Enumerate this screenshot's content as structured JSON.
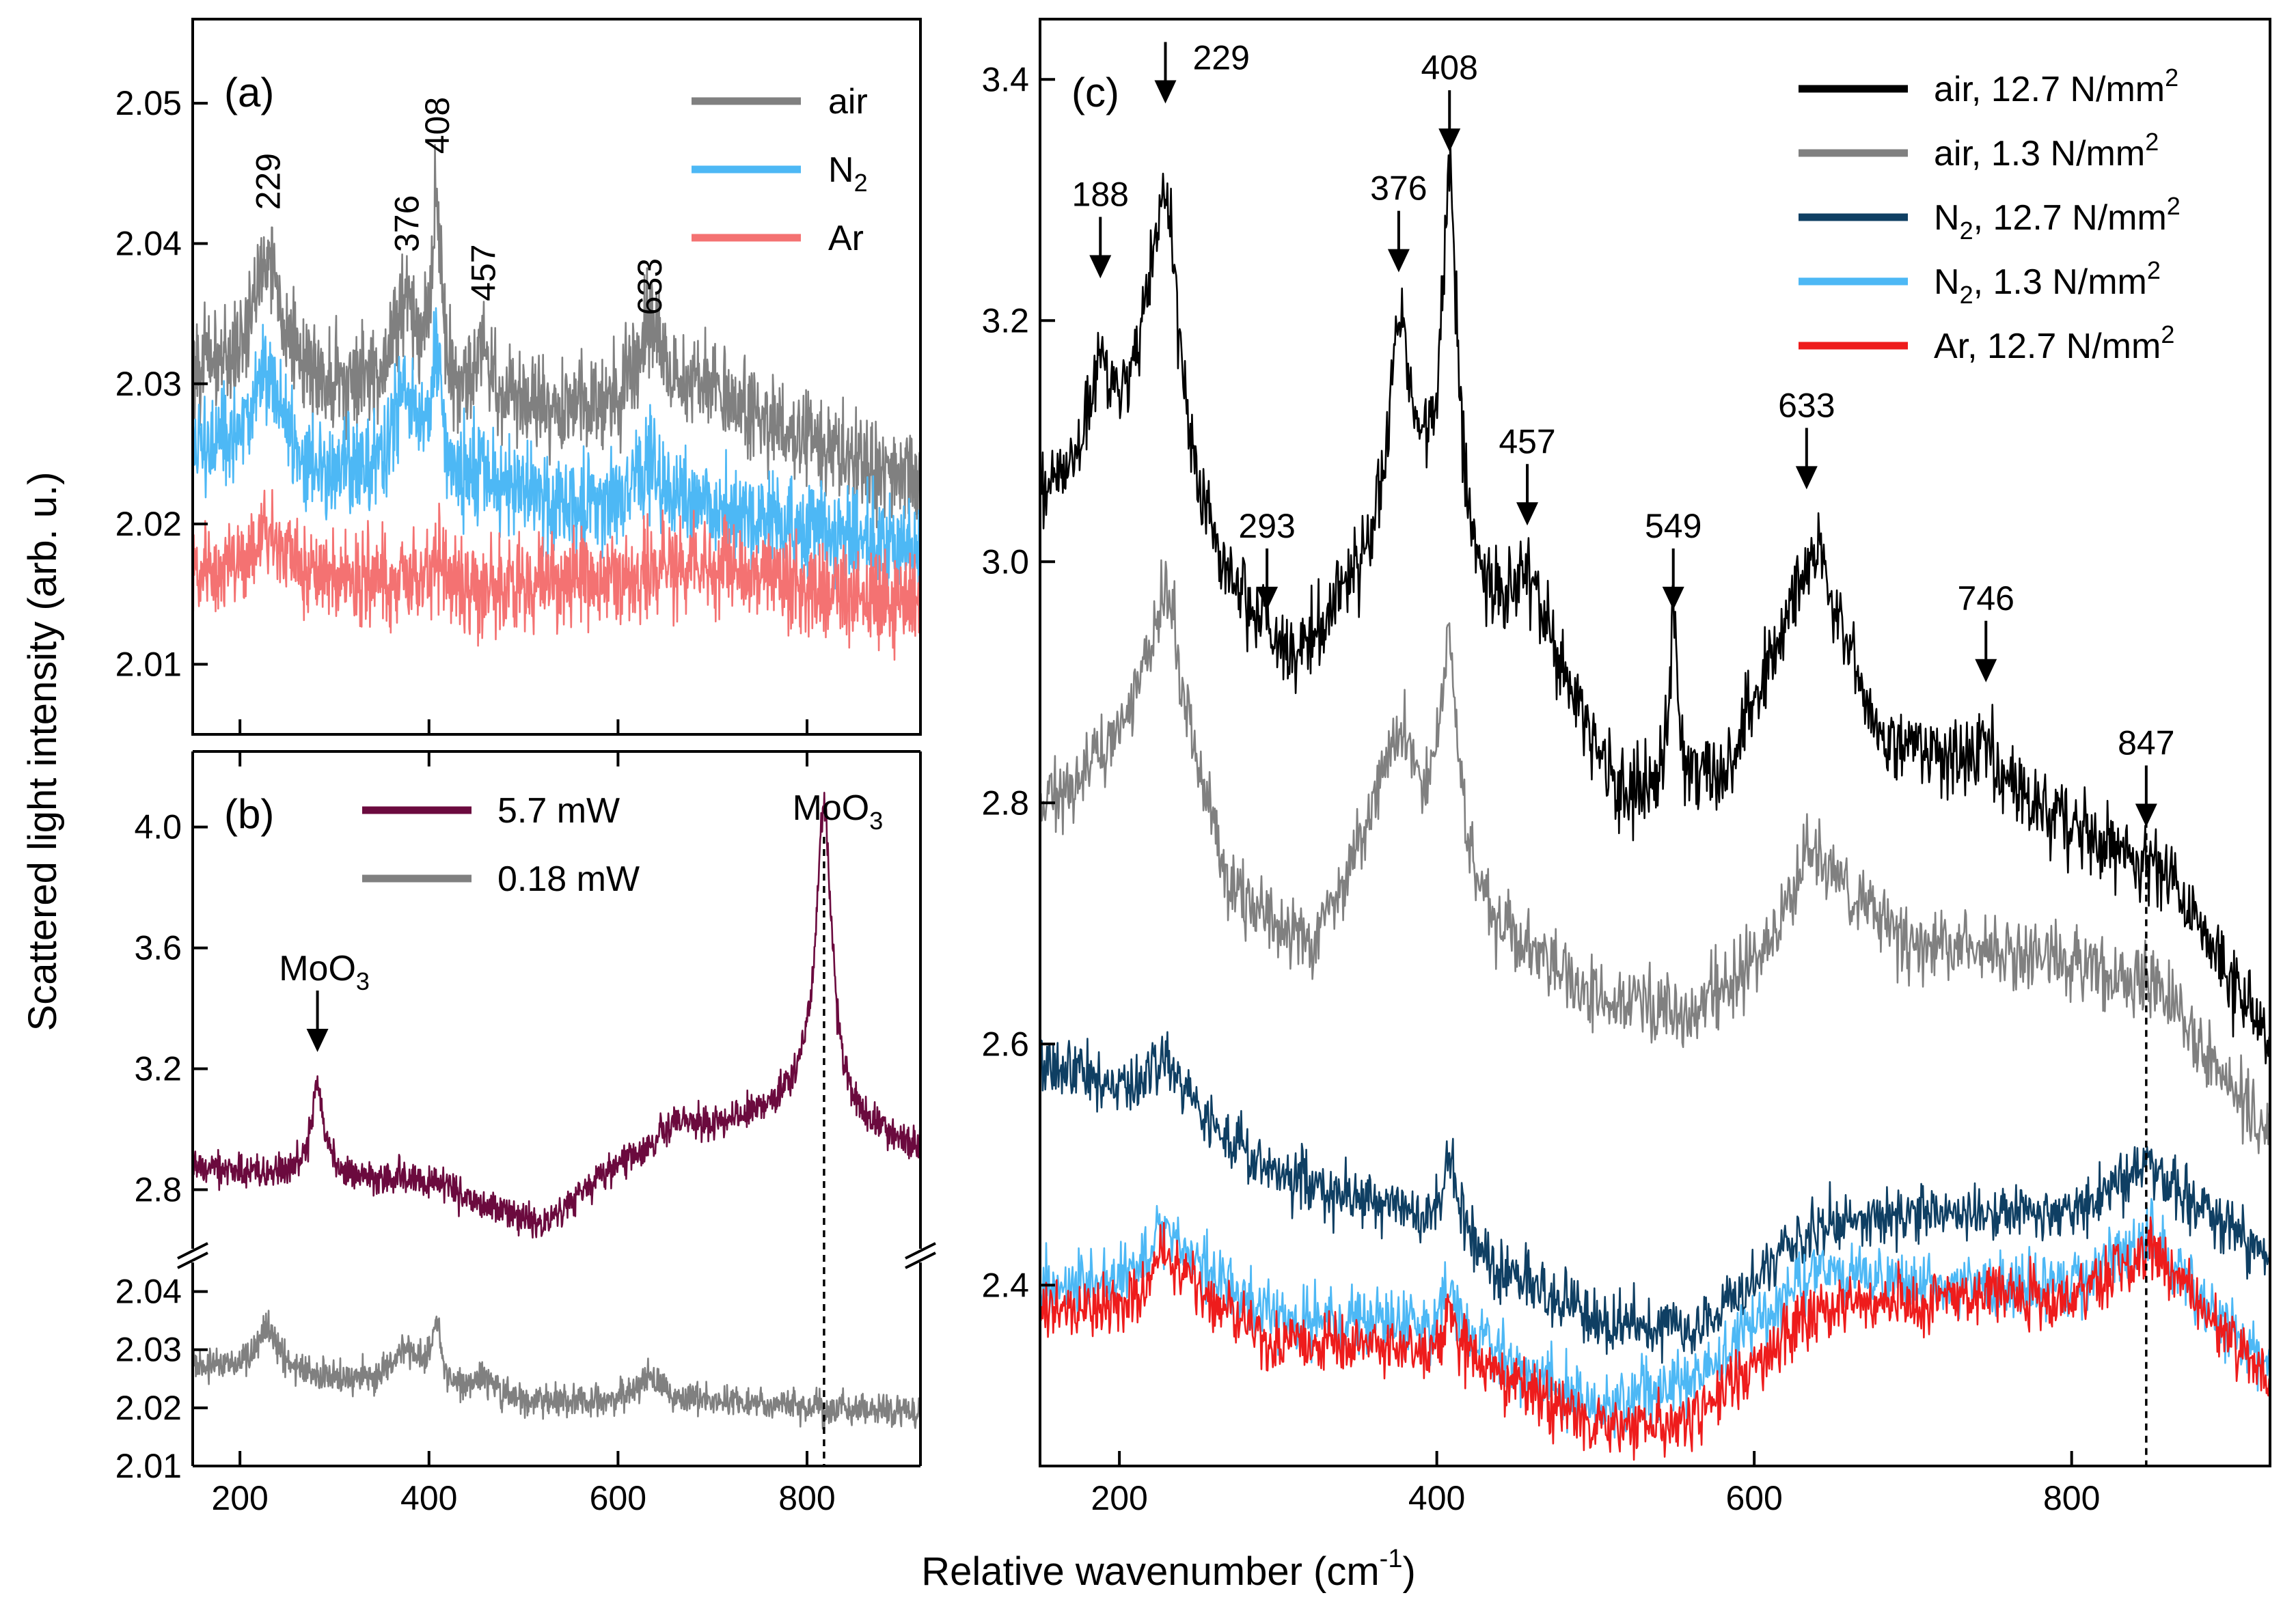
{
  "axes": {
    "ylabel": "Scattered light intensity (arb. u.)",
    "xlabel": "Relative wavenumber (cm",
    "xlabel_sup": "-1",
    "xlabel_end": ")"
  },
  "chart_data": [
    {
      "panel": "(a)",
      "type": "line",
      "xlim": [
        150,
        920
      ],
      "ylim": [
        2.005,
        2.056
      ],
      "xticks": [
        200,
        400,
        600,
        800
      ],
      "yticks": [
        2.01,
        2.02,
        2.03,
        2.04,
        2.05
      ],
      "ytick_labels": [
        "2.01",
        "2.02",
        "2.03",
        "2.04",
        "2.05"
      ],
      "legend": {
        "position": "top-right",
        "entries": [
          {
            "label": "air",
            "sub": "",
            "color": "#808080"
          },
          {
            "label": "N",
            "sub": "2",
            "color": "#4db8f5"
          },
          {
            "label": "Ar",
            "sub": "",
            "color": "#f47272"
          }
        ]
      },
      "peak_labels": [
        {
          "x": 229,
          "text": "229"
        },
        {
          "x": 376,
          "text": "376"
        },
        {
          "x": 408,
          "text": "408"
        },
        {
          "x": 457,
          "text": "457"
        },
        {
          "x": 633,
          "text": "633"
        }
      ],
      "series": [
        {
          "name": "air",
          "color": "#808080",
          "baseline": [
            [
              150,
              2.031
            ],
            [
              400,
              2.028
            ],
            [
              700,
              2.028
            ],
            [
              920,
              2.023
            ]
          ],
          "noise": 0.0032,
          "peaks": [
            [
              229,
              0.009,
              18
            ],
            [
              376,
              0.007,
              20
            ],
            [
              408,
              0.013,
              6
            ],
            [
              457,
              0.004,
              12
            ],
            [
              633,
              0.006,
              16
            ],
            [
              690,
              0.002,
              30
            ]
          ]
        },
        {
          "name": "N2",
          "color": "#4db8f5",
          "baseline": [
            [
              150,
              2.025
            ],
            [
              400,
              2.022
            ],
            [
              700,
              2.021
            ],
            [
              920,
              2.018
            ]
          ],
          "noise": 0.0032,
          "peaks": [
            [
              229,
              0.007,
              18
            ],
            [
              376,
              0.006,
              20
            ],
            [
              408,
              0.009,
              6
            ],
            [
              457,
              0.002,
              12
            ],
            [
              633,
              0.003,
              16
            ]
          ]
        },
        {
          "name": "Ar",
          "color": "#f47272",
          "baseline": [
            [
              150,
              2.0165
            ],
            [
              500,
              2.0155
            ],
            [
              700,
              2.017
            ],
            [
              920,
              2.014
            ]
          ],
          "noise": 0.003,
          "peaks": [
            [
              229,
              0.003,
              18
            ],
            [
              408,
              0.002,
              6
            ]
          ]
        }
      ]
    },
    {
      "panel": "(b)",
      "type": "line",
      "xlim": [
        150,
        920
      ],
      "segments": [
        {
          "ylim": [
            2.6,
            4.25
          ],
          "yticks": [
            2.8,
            3.2,
            3.6,
            4.0
          ],
          "ytick_labels": [
            "2.8",
            "3.2",
            "3.6",
            "4.0"
          ]
        },
        {
          "ylim": [
            2.01,
            2.045
          ],
          "yticks": [
            2.01,
            2.02,
            2.03,
            2.04
          ],
          "ytick_labels": [
            "2.01",
            "2.02",
            "2.03",
            "2.04"
          ]
        }
      ],
      "xticks": [
        200,
        400,
        600,
        800
      ],
      "xtick_labels": [
        "200",
        "400",
        "600",
        "800"
      ],
      "legend": {
        "position": "top-center",
        "entries": [
          {
            "label": "5.7 mW",
            "color": "#6b0a3e"
          },
          {
            "label": "0.18 mW",
            "color": "#808080"
          }
        ]
      },
      "annotations": [
        {
          "x": 282,
          "text": "MoO",
          "sub": "3"
        },
        {
          "x": 818,
          "text": "MoO",
          "sub": "3"
        }
      ],
      "dashed_line_x": 818,
      "series": [
        {
          "name": "5.7 mW",
          "color": "#6b0a3e",
          "segment": 0,
          "baseline": [
            [
              150,
              2.87
            ],
            [
              300,
              2.85
            ],
            [
              450,
              2.76
            ],
            [
              520,
              2.68
            ],
            [
              600,
              2.86
            ],
            [
              700,
              2.98
            ],
            [
              800,
              3.12
            ],
            [
              850,
              3.02
            ],
            [
              920,
              2.93
            ]
          ],
          "noise": 0.05,
          "peaks": [
            [
              282,
              0.3,
              7
            ],
            [
              372,
              0.04,
              15
            ],
            [
              408,
              0.05,
              10
            ],
            [
              818,
              0.98,
              10
            ],
            [
              660,
              0.09,
              30
            ]
          ]
        },
        {
          "name": "0.18 mW",
          "color": "#808080",
          "segment": 1,
          "baseline": [
            [
              150,
              2.027
            ],
            [
              300,
              2.025
            ],
            [
              500,
              2.021
            ],
            [
              700,
              2.021
            ],
            [
              920,
              2.019
            ]
          ],
          "noise": 0.0025,
          "peaks": [
            [
              229,
              0.008,
              14
            ],
            [
              376,
              0.006,
              18
            ],
            [
              408,
              0.011,
              6
            ],
            [
              457,
              0.003,
              12
            ],
            [
              633,
              0.004,
              18
            ]
          ]
        }
      ]
    },
    {
      "panel": "(c)",
      "type": "line",
      "xlim": [
        150,
        925
      ],
      "ylim": [
        2.25,
        3.45
      ],
      "xticks": [
        200,
        400,
        600,
        800
      ],
      "xtick_labels": [
        "200",
        "400",
        "600",
        "800"
      ],
      "yticks": [
        2.4,
        2.6,
        2.8,
        3.0,
        3.2,
        3.4
      ],
      "ytick_labels": [
        "2.4",
        "2.6",
        "2.8",
        "3.0",
        "3.2",
        "3.4"
      ],
      "legend": {
        "position": "top-right",
        "entries": [
          {
            "label": "air, 12.7 N/mm",
            "sup": "2",
            "pre": "",
            "sub": "",
            "color": "#000000"
          },
          {
            "label": "air, 1.3 N/mm",
            "sup": "2",
            "pre": "",
            "sub": "",
            "color": "#808080"
          },
          {
            "label": ", 12.7 N/mm",
            "sup": "2",
            "pre": "N",
            "sub": "2",
            "color": "#0f3f63"
          },
          {
            "label": ", 1.3 N/mm",
            "sup": "2",
            "pre": "N",
            "sub": "2",
            "color": "#4db8f5"
          },
          {
            "label": "Ar, 12.7 N/mm",
            "sup": "2",
            "pre": "",
            "sub": "",
            "color": "#ee1c1c"
          }
        ]
      },
      "peak_labels": [
        {
          "x": 188,
          "y": 3.235,
          "text": "188"
        },
        {
          "x": 229,
          "y": 3.38,
          "text": "229"
        },
        {
          "x": 293,
          "y": 2.96,
          "text": "293"
        },
        {
          "x": 376,
          "y": 3.24,
          "text": "376"
        },
        {
          "x": 408,
          "y": 3.34,
          "text": "408"
        },
        {
          "x": 457,
          "y": 3.03,
          "text": "457"
        },
        {
          "x": 549,
          "y": 2.96,
          "text": "549"
        },
        {
          "x": 633,
          "y": 3.06,
          "text": "633"
        },
        {
          "x": 746,
          "y": 2.9,
          "text": "746"
        },
        {
          "x": 847,
          "y": 2.78,
          "text": "847"
        }
      ],
      "dashed_line_x": 847,
      "series": [
        {
          "name": "air, 12.7 N/mm2",
          "color": "#000000",
          "baseline": [
            [
              150,
              3.05
            ],
            [
              190,
              3.1
            ],
            [
              220,
              3.14
            ],
            [
              260,
              3.0
            ],
            [
              300,
              2.9
            ],
            [
              350,
              2.98
            ],
            [
              390,
              3.05
            ],
            [
              430,
              2.96
            ],
            [
              470,
              2.92
            ],
            [
              520,
              2.8
            ],
            [
              580,
              2.82
            ],
            [
              640,
              2.98
            ],
            [
              680,
              2.85
            ],
            [
              750,
              2.82
            ],
            [
              800,
              2.78
            ],
            [
              860,
              2.74
            ],
            [
              925,
              2.6
            ]
          ],
          "noise": 0.03,
          "peaks": [
            [
              188,
              0.07,
              6
            ],
            [
              229,
              0.19,
              10
            ],
            [
              293,
              0.03,
              6
            ],
            [
              376,
              0.16,
              8
            ],
            [
              408,
              0.29,
              6
            ],
            [
              457,
              0.05,
              10
            ],
            [
              549,
              0.14,
              3
            ],
            [
              633,
              0.04,
              15
            ],
            [
              746,
              0.03,
              8
            ]
          ]
        },
        {
          "name": "air, 1.3 N/mm2",
          "color": "#808080",
          "baseline": [
            [
              150,
              2.79
            ],
            [
              200,
              2.85
            ],
            [
              230,
              2.92
            ],
            [
              270,
              2.72
            ],
            [
              320,
              2.68
            ],
            [
              370,
              2.8
            ],
            [
              400,
              2.78
            ],
            [
              430,
              2.7
            ],
            [
              500,
              2.64
            ],
            [
              550,
              2.62
            ],
            [
              600,
              2.66
            ],
            [
              640,
              2.74
            ],
            [
              700,
              2.68
            ],
            [
              800,
              2.67
            ],
            [
              860,
              2.64
            ],
            [
              925,
              2.52
            ]
          ],
          "noise": 0.028,
          "peaks": [
            [
              229,
              0.06,
              12
            ],
            [
              376,
              0.06,
              10
            ],
            [
              408,
              0.17,
              6
            ],
            [
              633,
              0.03,
              15
            ]
          ]
        },
        {
          "name": "N2, 12.7 N/mm2",
          "color": "#0f3f63",
          "baseline": [
            [
              150,
              2.59
            ],
            [
              200,
              2.56
            ],
            [
              240,
              2.55
            ],
            [
              300,
              2.49
            ],
            [
              380,
              2.46
            ],
            [
              430,
              2.42
            ],
            [
              500,
              2.37
            ],
            [
              560,
              2.36
            ],
            [
              640,
              2.45
            ],
            [
              720,
              2.46
            ],
            [
              800,
              2.46
            ],
            [
              850,
              2.5
            ],
            [
              925,
              2.42
            ]
          ],
          "noise": 0.022,
          "peaks": [
            [
              229,
              0.04,
              10
            ],
            [
              408,
              0.07,
              6
            ]
          ]
        },
        {
          "name": "N2, 1.3 N/mm2",
          "color": "#4db8f5",
          "baseline": [
            [
              150,
              2.4
            ],
            [
              200,
              2.4
            ],
            [
              240,
              2.42
            ],
            [
              300,
              2.37
            ],
            [
              380,
              2.37
            ],
            [
              430,
              2.35
            ],
            [
              500,
              2.3
            ],
            [
              560,
              2.32
            ],
            [
              640,
              2.41
            ],
            [
              720,
              2.4
            ],
            [
              800,
              2.4
            ],
            [
              850,
              2.44
            ],
            [
              925,
              2.33
            ]
          ],
          "noise": 0.025,
          "peaks": [
            [
              229,
              0.03,
              10
            ],
            [
              408,
              0.04,
              6
            ]
          ]
        },
        {
          "name": "Ar, 12.7 N/mm2",
          "color": "#ee1c1c",
          "baseline": [
            [
              150,
              2.38
            ],
            [
              200,
              2.38
            ],
            [
              240,
              2.4
            ],
            [
              300,
              2.35
            ],
            [
              380,
              2.35
            ],
            [
              430,
              2.33
            ],
            [
              500,
              2.28
            ],
            [
              560,
              2.29
            ],
            [
              640,
              2.38
            ],
            [
              720,
              2.39
            ],
            [
              800,
              2.39
            ],
            [
              850,
              2.43
            ],
            [
              925,
              2.32
            ]
          ],
          "noise": 0.022,
          "peaks": [
            [
              229,
              0.03,
              10
            ],
            [
              408,
              0.04,
              6
            ]
          ]
        }
      ]
    }
  ]
}
